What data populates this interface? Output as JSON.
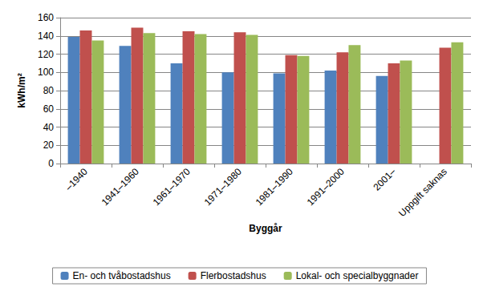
{
  "chart_data": {
    "type": "bar",
    "x_label": "Byggår",
    "y_label": "kWh/m²",
    "categories": [
      "–1940",
      "1941–1960",
      "1961–1970",
      "1971–1980",
      "1981–1990",
      "1991–2000",
      "2001–",
      "Uppgift saknas"
    ],
    "series": [
      {
        "name": "En- och tvåbostadshus",
        "color": "#4f81bd",
        "values": [
          139,
          129,
          110,
          100,
          99,
          102,
          96,
          null
        ]
      },
      {
        "name": "Flerbostadshus",
        "color": "#c0504d",
        "values": [
          146,
          149,
          145,
          144,
          119,
          122,
          110,
          127
        ]
      },
      {
        "name": "Lokal- och specialbyggnader",
        "color": "#9bbb59",
        "values": [
          135,
          143,
          142,
          141,
          118,
          130,
          113,
          133
        ]
      }
    ],
    "ylim": [
      0,
      160
    ],
    "yticks": [
      0,
      20,
      40,
      60,
      80,
      100,
      120,
      140,
      160
    ],
    "grid": true,
    "legend": "bottom"
  }
}
